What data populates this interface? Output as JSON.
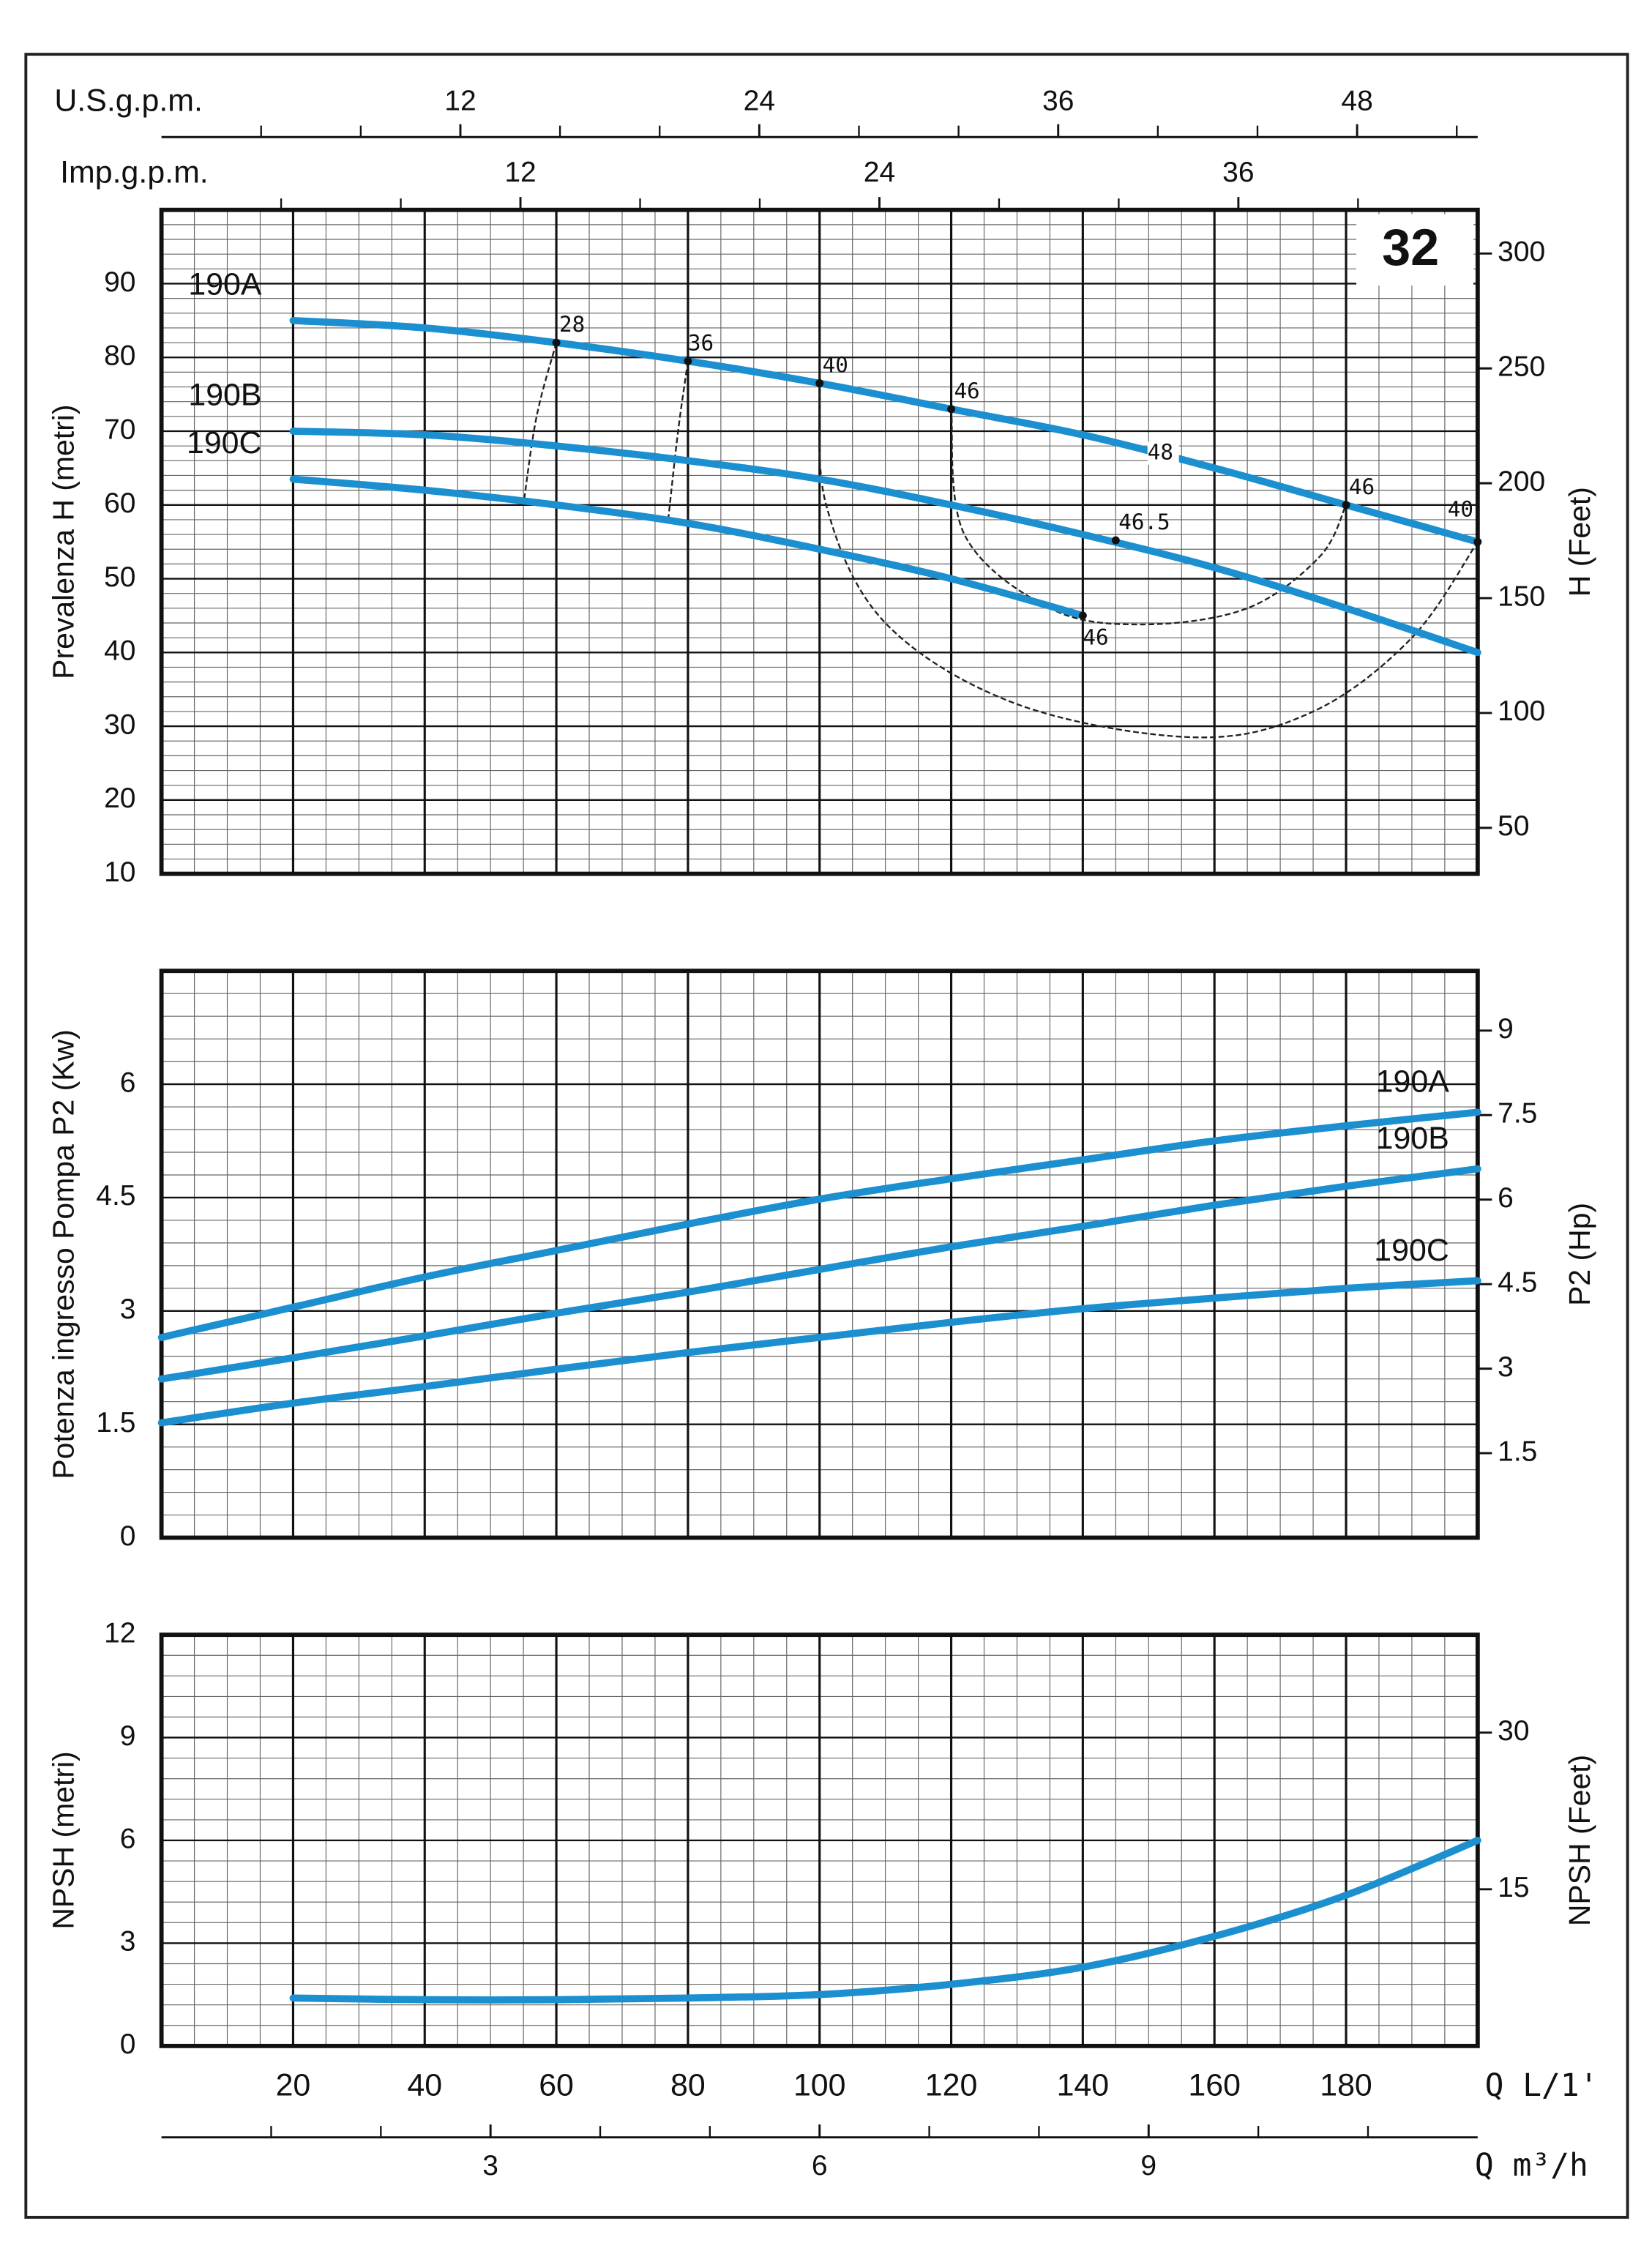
{
  "chart_data": [
    {
      "type": "line",
      "badge": "32",
      "ylabel": "Prevalenza H (metri)",
      "y2label": "H (Feet)",
      "x": [
        20,
        40,
        60,
        80,
        100,
        120,
        140,
        160,
        180,
        200
      ],
      "xlim": [
        0,
        200
      ],
      "xticks": [
        20,
        40,
        60,
        80,
        100,
        120,
        140,
        160,
        180
      ],
      "xtick_labels": false,
      "minor_step": {
        "x": 5,
        "y": 2
      },
      "ylim": [
        10,
        100
      ],
      "yticks": [
        10,
        20,
        30,
        40,
        50,
        60,
        70,
        80,
        90
      ],
      "y2lim": [
        30,
        319
      ],
      "y2ticks": [
        50,
        100,
        150,
        200,
        250,
        300
      ],
      "series_label_side": "left",
      "series": [
        {
          "name": "190A",
          "color": "#1b8fd0",
          "values": [
            85,
            84,
            82,
            79.5,
            76.5,
            73,
            69.5,
            65,
            60,
            55
          ]
        },
        {
          "name": "190B",
          "color": "#1b8fd0",
          "values": [
            70,
            69.5,
            68,
            66,
            63.5,
            60,
            56,
            51.5,
            46,
            40
          ]
        },
        {
          "name": "190C",
          "color": "#1b8fd0",
          "values": [
            63.5,
            62,
            60,
            57.5,
            54,
            50,
            45,
            null,
            null,
            null
          ]
        }
      ],
      "efficiency_curves": [
        {
          "x": [
            60,
            57,
            55
          ],
          "y": [
            82,
            72,
            60
          ]
        },
        {
          "x": [
            80,
            78.5,
            77
          ],
          "y": [
            79.5,
            70,
            58
          ]
        },
        {
          "x": [
            100,
            101,
            110,
            130,
            157,
            175,
            190,
            200
          ],
          "y": [
            76.5,
            60,
            44,
            33,
            28.5,
            32,
            42,
            55
          ]
        },
        {
          "x": [
            120,
            122,
            135,
            149,
            165,
            176,
            180
          ],
          "y": [
            73,
            56,
            46,
            43.8,
            46,
            53,
            60
          ]
        }
      ],
      "efficiency_points": [
        {
          "label": "28",
          "x": 60,
          "y": 82
        },
        {
          "label": "36",
          "x": 80,
          "y": 79.5
        },
        {
          "label": "40",
          "x": 100,
          "y": 76.5
        },
        {
          "label": "46",
          "x": 120,
          "y": 73
        },
        {
          "label": "48",
          "x": 152,
          "y": 67,
          "marker": false
        },
        {
          "label": "46",
          "x": 180,
          "y": 60
        },
        {
          "label": "40",
          "x": 200,
          "y": 55
        },
        {
          "label": "46.5",
          "x": 145,
          "y": 55.2
        },
        {
          "label": "46",
          "x": 140,
          "y": 45
        }
      ],
      "top_axes": [
        {
          "label": "U.S.g.p.m.",
          "xlim": [
            0,
            52.84
          ],
          "xticks": [
            12,
            24,
            36,
            48
          ],
          "minor_ticks": [
            4,
            8,
            16,
            20,
            28,
            32,
            40,
            44,
            52
          ]
        },
        {
          "label": "Imp.g.p.m.",
          "xlim": [
            0,
            44
          ],
          "xticks": [
            12,
            24,
            36
          ],
          "minor_ticks": [
            4,
            8,
            16,
            20,
            28,
            32,
            40
          ]
        }
      ]
    },
    {
      "type": "line",
      "ylabel": "Potenza ingresso Pompa P2 (Kw)",
      "y2label": "P2 (Hp)",
      "x": [
        0,
        20,
        40,
        60,
        80,
        100,
        120,
        140,
        160,
        180,
        200
      ],
      "xlim": [
        0,
        200
      ],
      "xticks": [
        20,
        40,
        60,
        80,
        100,
        120,
        140,
        160,
        180
      ],
      "xtick_labels": false,
      "minor_step": {
        "x": 5,
        "y": 0.3
      },
      "ylim": [
        0,
        7.5
      ],
      "yticks": [
        0,
        1.5,
        3,
        4.5,
        6
      ],
      "y2lim": [
        0,
        10.06
      ],
      "y2ticks": [
        1.5,
        3,
        4.5,
        6,
        7.5,
        9
      ],
      "series_label_side": "right",
      "series": [
        {
          "name": "190A",
          "color": "#1b8fd0",
          "values": [
            2.65,
            3.05,
            3.45,
            3.8,
            4.15,
            4.48,
            4.75,
            5.0,
            5.25,
            5.45,
            5.63
          ]
        },
        {
          "name": "190B",
          "color": "#1b8fd0",
          "values": [
            2.1,
            2.38,
            2.67,
            2.97,
            3.25,
            3.55,
            3.85,
            4.12,
            4.4,
            4.65,
            4.88
          ]
        },
        {
          "name": "190C",
          "color": "#1b8fd0",
          "values": [
            1.52,
            1.78,
            2.0,
            2.23,
            2.45,
            2.65,
            2.85,
            3.03,
            3.17,
            3.3,
            3.4
          ]
        }
      ]
    },
    {
      "type": "line",
      "ylabel": "NPSH (metri)",
      "y2label": "NPSH (Feet)",
      "x": [
        20,
        40,
        60,
        80,
        100,
        120,
        140,
        160,
        180,
        200
      ],
      "xlim": [
        0,
        200
      ],
      "xticks": [
        20,
        40,
        60,
        80,
        100,
        120,
        140,
        160,
        180
      ],
      "xtick_labels": true,
      "xlabel": "Q L/1'",
      "minor_step": {
        "x": 5,
        "y": 0.6
      },
      "ylim": [
        0,
        12
      ],
      "yticks": [
        0,
        3,
        6,
        9,
        12
      ],
      "y2lim": [
        0,
        39.37
      ],
      "y2ticks": [
        15,
        30
      ],
      "series": [
        {
          "color": "#1b8fd0",
          "values": [
            1.4,
            1.35,
            1.35,
            1.4,
            1.5,
            1.8,
            2.3,
            3.2,
            4.4,
            6.0
          ]
        }
      ],
      "bottom_axis": {
        "label": "Q m³/h",
        "xlim": [
          0,
          12
        ],
        "xticks": [
          3,
          6,
          9
        ],
        "minor_ticks": [
          1,
          2,
          4,
          5,
          7,
          8,
          10,
          11
        ]
      }
    }
  ]
}
